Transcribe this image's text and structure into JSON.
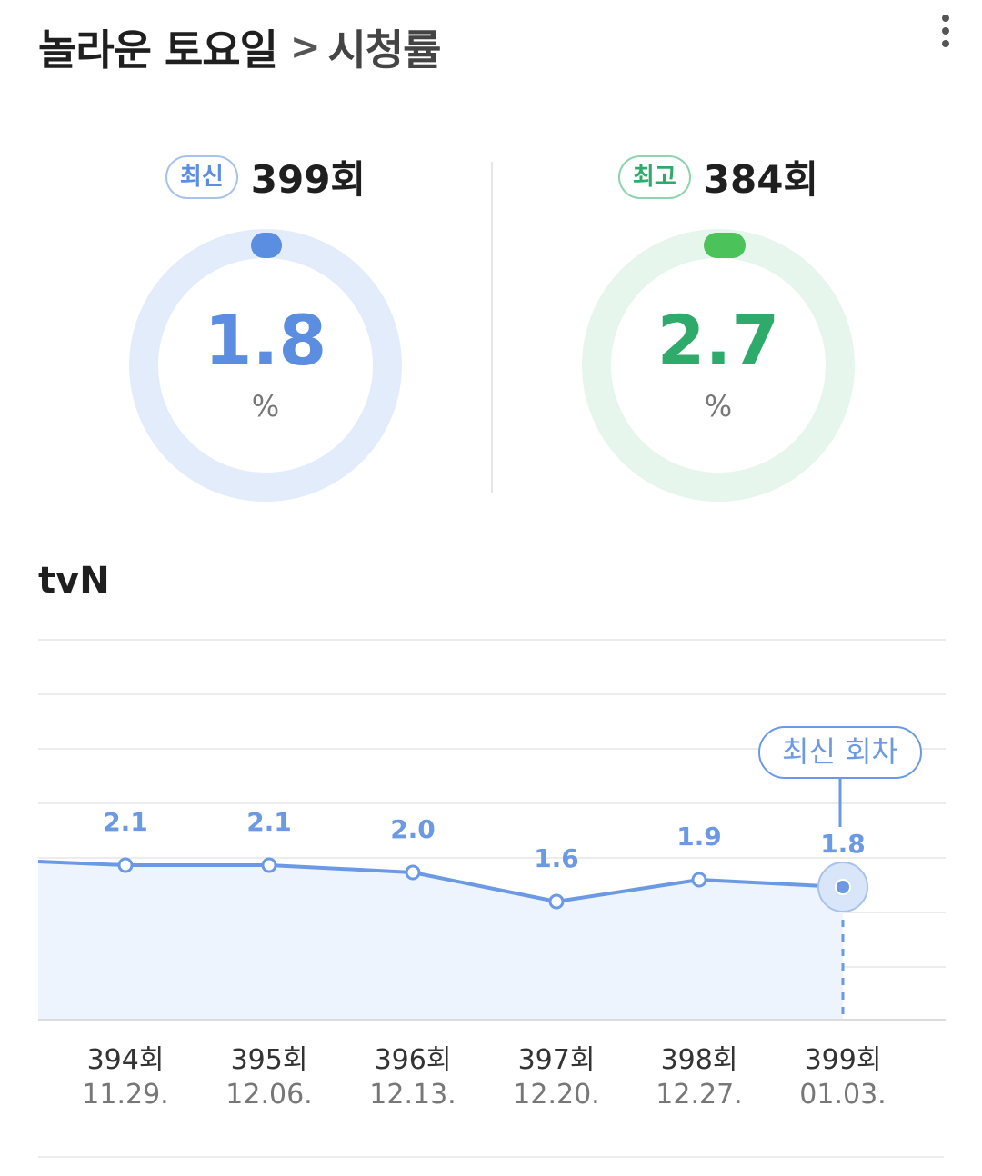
{
  "header": {
    "title": "놀라운 토요일",
    "separator": ">",
    "subtitle": "시청률",
    "more_icon": "more-vertical-icon"
  },
  "latest": {
    "badge": "최신",
    "episode": "399회",
    "value": "1.8",
    "rating": 1.8,
    "unit": "%",
    "color": "#5b8de0",
    "track_color": "#e3ecfa"
  },
  "best": {
    "badge": "최고",
    "episode": "384회",
    "value": "2.7",
    "rating": 2.7,
    "unit": "%",
    "color": "#2eaa6a",
    "dot_color": "#4cc35a",
    "track_color": "#e6f6ec"
  },
  "channel": "tvN",
  "chart_data": {
    "type": "line",
    "episodes": [
      "394회",
      "395회",
      "396회",
      "397회",
      "398회",
      "399회"
    ],
    "dates": [
      "11.29.",
      "12.06.",
      "12.13.",
      "12.20.",
      "12.27.",
      "01.03."
    ],
    "values": [
      2.1,
      2.1,
      2.0,
      1.6,
      1.9,
      1.8
    ],
    "value_labels": [
      "2.1",
      "2.1",
      "2.0",
      "1.6",
      "1.9",
      "1.8"
    ],
    "callout": "최신 회차",
    "highlight_index": 5,
    "grid": true,
    "color": "#6b99e3",
    "area_color": "#eef4fd"
  }
}
